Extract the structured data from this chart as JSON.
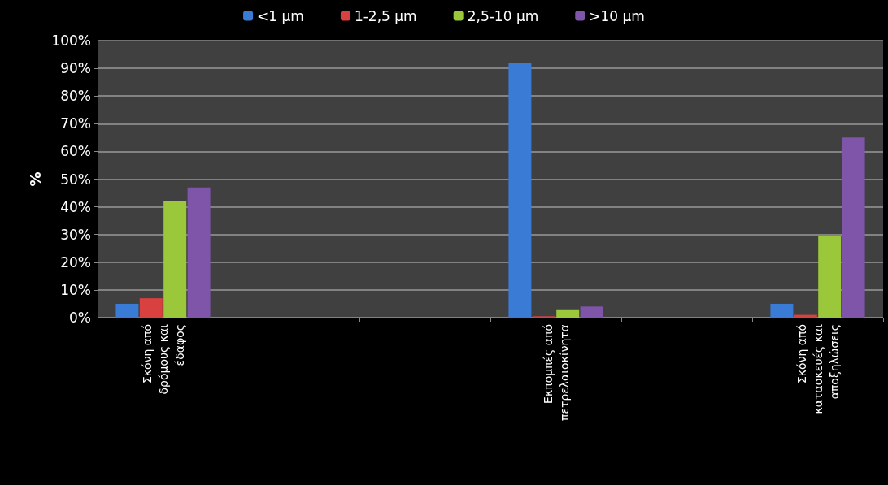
{
  "chart_data": {
    "type": "bar",
    "ylabel": "%",
    "categories": [
      "Σκόνη από δρόμους και έδαφος",
      null,
      null,
      "Εκπομπές από πετρελαιοκίνητα",
      null,
      "Σκόνη από κατασκευές και αποξηλώσεις"
    ],
    "series": [
      {
        "name": "<1 μm",
        "color": "#3a7bd5",
        "values": [
          5,
          null,
          null,
          92,
          null,
          5
        ]
      },
      {
        "name": "1-2,5 μm",
        "color": "#d94040",
        "values": [
          7,
          null,
          null,
          0.5,
          null,
          1
        ]
      },
      {
        "name": "2,5-10 μm",
        "color": "#9bc83a",
        "values": [
          42,
          null,
          null,
          3,
          null,
          29.5
        ]
      },
      {
        "name": ">10 μm",
        "color": "#7e55a8",
        "values": [
          47,
          null,
          null,
          4,
          null,
          65
        ]
      }
    ],
    "ylim": [
      0,
      100
    ],
    "yticks": [
      {
        "value": 0,
        "label": "0%"
      },
      {
        "value": 10,
        "label": "10%"
      },
      {
        "value": 20,
        "label": "20%"
      },
      {
        "value": 30,
        "label": "30%"
      },
      {
        "value": 40,
        "label": "40%"
      },
      {
        "value": 50,
        "label": "50%"
      },
      {
        "value": 60,
        "label": "60%"
      },
      {
        "value": 70,
        "label": "70%"
      },
      {
        "value": 80,
        "label": "80%"
      },
      {
        "value": 90,
        "label": "90%"
      },
      {
        "value": 100,
        "label": "100%"
      }
    ],
    "grid": true,
    "legend": "top"
  }
}
